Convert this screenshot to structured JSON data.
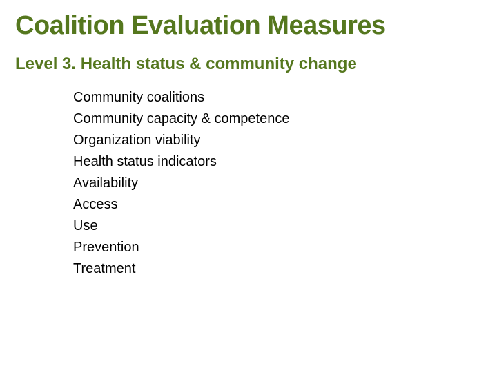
{
  "slide": {
    "title": "Coalition Evaluation Measures",
    "subtitle": "Level 3. Health status & community change",
    "items": [
      "Community coalitions",
      "Community capacity & competence",
      "Organization viability",
      "Health status indicators",
      "Availability",
      "Access",
      "Use",
      "Prevention",
      "Treatment"
    ],
    "colors": {
      "heading": "#55771e",
      "body_text": "#000000",
      "background": "#ffffff"
    },
    "typography": {
      "title_fontsize": 38,
      "title_weight": 900,
      "subtitle_fontsize": 24,
      "subtitle_weight": 900,
      "item_fontsize": 20,
      "item_lineheight": 1.55
    }
  }
}
